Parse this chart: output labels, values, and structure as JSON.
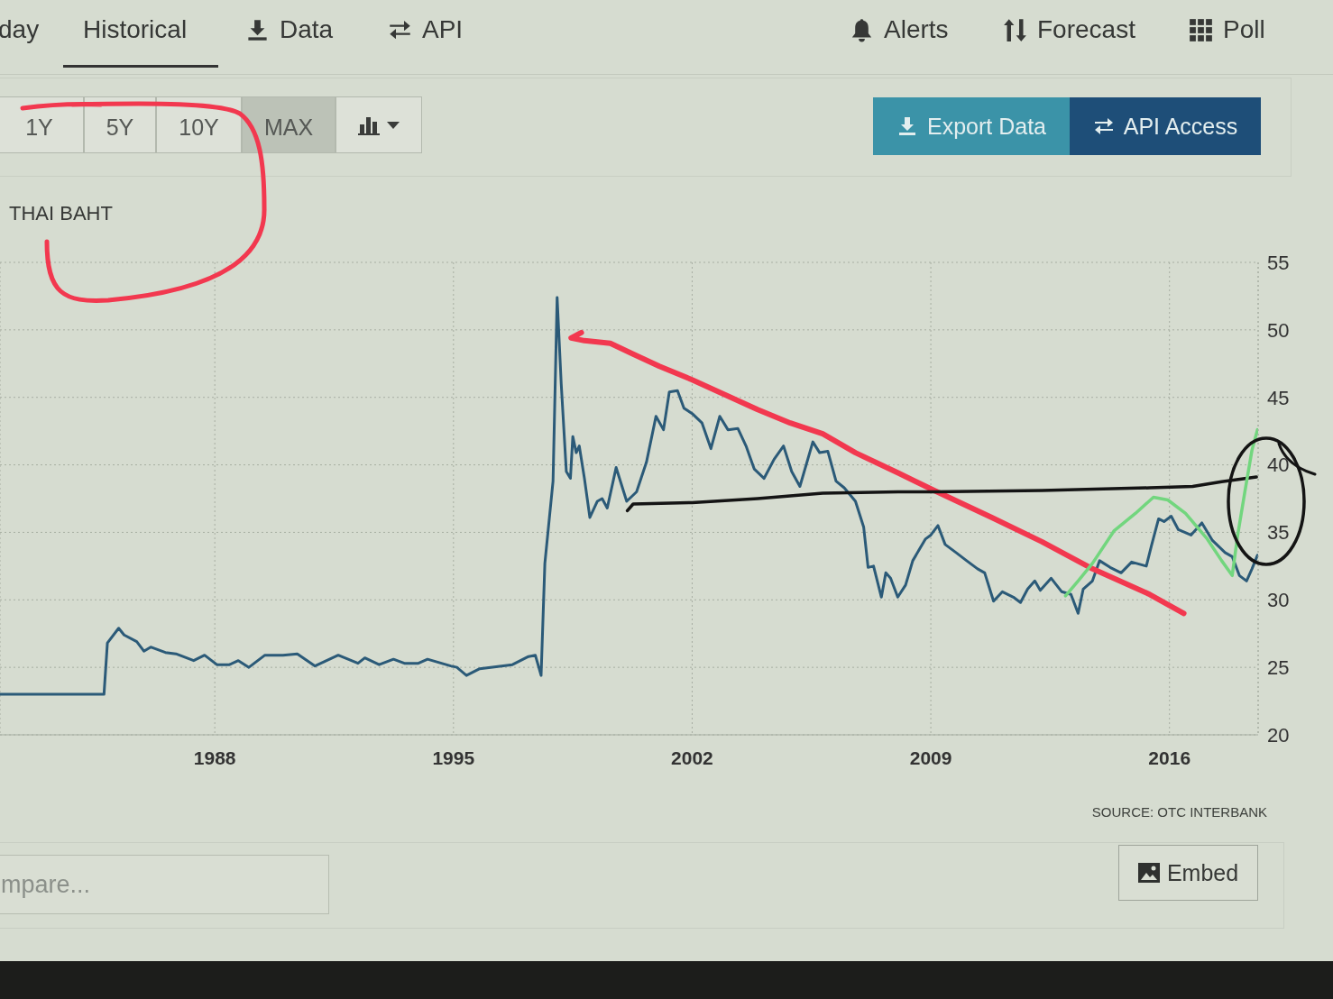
{
  "chart_data": {
    "type": "line",
    "title": "THAI BAHT",
    "annotations": [
      "day",
      "Historical",
      "Data",
      "API",
      "Alerts",
      "Forecast",
      "Poll",
      "1Y",
      "5Y",
      "10Y",
      "MAX",
      "Export Data",
      "API Access",
      "SOURCE: OTC INTERBANK",
      "mpare...",
      "Embed"
    ],
    "xlim": [
      1981.7,
      2018.6
    ],
    "xticks": [
      1988,
      1995,
      2002,
      2009,
      2016
    ],
    "ylim": [
      20,
      55
    ],
    "yticks": [
      20,
      25,
      30,
      35,
      40,
      45,
      50,
      55
    ],
    "grid": true,
    "series": [
      {
        "color": "#2b5a78",
        "x": [
          1981.7,
          1984.75,
          1984.85,
          1985.18,
          1985.34,
          1985.71,
          1985.92,
          1986.12,
          1986.55,
          1986.86,
          1987.38,
          1987.7,
          1988.06,
          1988.43,
          1988.69,
          1989.0,
          1989.47,
          1990.0,
          1990.42,
          1990.94,
          1991.62,
          1992.2,
          1992.4,
          1992.82,
          1993.24,
          1993.56,
          1993.97,
          1994.24,
          1994.92,
          1995.1,
          1995.38,
          1995.77,
          1996.73,
          1997.2,
          1997.4,
          1997.57,
          1997.68,
          1997.92,
          1998.04,
          1998.16,
          1998.31,
          1998.43,
          1998.5,
          1998.6,
          1998.69,
          1998.84,
          1999.0,
          1999.22,
          1999.36,
          1999.51,
          1999.77,
          2000.08,
          2000.37,
          2000.66,
          2000.94,
          2001.16,
          2001.33,
          2001.57,
          2001.76,
          2002.0,
          2002.29,
          2002.55,
          2002.81,
          2003.05,
          2003.34,
          2003.58,
          2003.82,
          2004.11,
          2004.4,
          2004.68,
          2004.92,
          2005.16,
          2005.54,
          2005.74,
          2005.98,
          2006.22,
          2006.46,
          2006.79,
          2007.03,
          2007.16,
          2007.32,
          2007.55,
          2007.68,
          2007.82,
          2008.03,
          2008.26,
          2008.47,
          2008.84,
          2009.0,
          2009.21,
          2009.42,
          2009.74,
          2010.05,
          2010.37,
          2010.58,
          2010.84,
          2011.1,
          2011.42,
          2011.63,
          2011.84,
          2012.05,
          2012.21,
          2012.53,
          2012.84,
          2013.11,
          2013.32,
          2013.47,
          2013.74,
          2013.95,
          2014.26,
          2014.58,
          2014.89,
          2015.32,
          2015.47,
          2015.68,
          2015.84,
          2016.05,
          2016.26,
          2016.63,
          2016.95,
          2017.26,
          2017.63,
          2017.84,
          2018.05,
          2018.26,
          2018.42,
          2018.58
        ],
        "values": [
          23.0,
          23.0,
          26.8,
          27.9,
          27.4,
          26.9,
          26.2,
          26.5,
          26.1,
          26.0,
          25.5,
          25.9,
          25.2,
          25.2,
          25.5,
          25.0,
          25.9,
          25.9,
          26.0,
          25.1,
          25.9,
          25.3,
          25.7,
          25.2,
          25.6,
          25.3,
          25.3,
          25.6,
          25.1,
          25.0,
          24.4,
          24.9,
          25.2,
          25.8,
          25.9,
          24.4,
          32.7,
          38.8,
          52.4,
          46.0,
          39.5,
          39.0,
          42.1,
          40.9,
          41.4,
          39.0,
          36.1,
          37.3,
          37.5,
          36.8,
          39.8,
          37.3,
          38.0,
          40.2,
          43.6,
          42.6,
          45.4,
          45.5,
          44.2,
          43.8,
          43.1,
          41.2,
          43.6,
          42.6,
          42.7,
          41.4,
          39.7,
          39.0,
          40.4,
          41.4,
          39.5,
          38.4,
          41.7,
          40.9,
          41.0,
          38.8,
          38.3,
          37.3,
          35.4,
          32.4,
          32.5,
          30.2,
          32.0,
          31.6,
          30.2,
          31.1,
          32.9,
          34.5,
          34.8,
          35.5,
          34.1,
          33.5,
          32.9,
          32.3,
          32.0,
          29.9,
          30.6,
          30.2,
          29.8,
          30.8,
          31.4,
          30.7,
          31.6,
          30.6,
          30.4,
          29.0,
          30.8,
          31.4,
          32.9,
          32.4,
          32.0,
          32.8,
          32.5,
          34.0,
          36.0,
          35.8,
          36.2,
          35.2,
          34.8,
          35.7,
          34.4,
          33.5,
          33.2,
          31.8,
          31.4,
          32.3,
          33.3
        ]
      },
      {
        "type": "line",
        "color": "#f2384f",
        "x": [
          1998.75,
          1998.45,
          1998.84,
          1999.6,
          2000.27,
          2001.04,
          2002.0,
          2002.96,
          2003.92,
          2004.88,
          2005.83,
          2006.79,
          2008.04,
          2009.1,
          2010.79,
          2012.26,
          2013.74,
          2015.42,
          2016.42
        ],
        "values": [
          49.8,
          49.4,
          49.2,
          49.0,
          48.2,
          47.3,
          46.3,
          45.2,
          44.1,
          43.1,
          42.3,
          40.9,
          39.4,
          38.1,
          36.1,
          34.3,
          32.3,
          30.4,
          29.0
        ]
      },
      {
        "type": "line",
        "color": "#141414",
        "x": [
          2000.1,
          2000.27,
          2002.0,
          2003.92,
          2005.83,
          2008.04,
          2009.1,
          2012.26,
          2015.42,
          2016.68,
          2017.53,
          2018.55
        ],
        "values": [
          36.6,
          37.1,
          37.2,
          37.5,
          37.9,
          38.0,
          38.0,
          38.1,
          38.3,
          38.4,
          38.75,
          39.1
        ]
      },
      {
        "type": "line",
        "color": "#72d67e",
        "x": [
          2012.95,
          2013.32,
          2013.74,
          2014.37,
          2015.0,
          2015.53,
          2015.95,
          2016.47,
          2017.11,
          2017.53,
          2017.84,
          2018.0,
          2018.21,
          2018.42,
          2018.58
        ],
        "values": [
          30.3,
          31.4,
          32.7,
          35.1,
          36.4,
          37.6,
          37.4,
          36.4,
          34.5,
          32.9,
          31.8,
          34.8,
          38.0,
          41.1,
          42.6
        ]
      }
    ]
  }
}
